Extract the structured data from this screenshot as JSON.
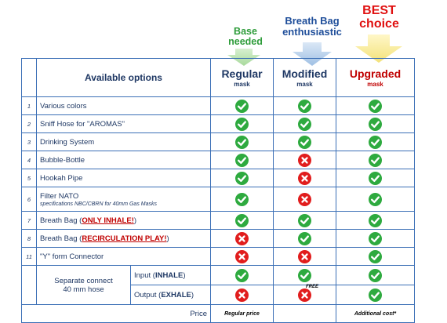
{
  "headers": {
    "base": [
      "Base",
      "needed"
    ],
    "enthusiast": [
      "Breath Bag",
      "enthusiastic"
    ],
    "best": [
      "BEST",
      "choice"
    ]
  },
  "columns": {
    "available": "Available options",
    "regular": {
      "title": "Regular",
      "sub": "mask"
    },
    "modified": {
      "title": "Modified",
      "sub": "mask"
    },
    "upgraded": {
      "title": "Upgraded",
      "sub": "mask"
    }
  },
  "rows": [
    {
      "num": "1",
      "label": "Various colors",
      "regular": "yes",
      "modified": "yes",
      "upgraded": "yes"
    },
    {
      "num": "2",
      "label": "Sniff Hose for \"AROMAS\"",
      "regular": "yes",
      "modified": "yes",
      "upgraded": "yes"
    },
    {
      "num": "3",
      "label": "Drinking System",
      "regular": "yes",
      "modified": "yes",
      "upgraded": "yes"
    },
    {
      "num": "4",
      "label": "Bubble-Bottle",
      "regular": "yes",
      "modified": "no",
      "upgraded": "yes"
    },
    {
      "num": "5",
      "label": "Hookah Pipe",
      "regular": "yes",
      "modified": "no",
      "upgraded": "yes"
    },
    {
      "num": "6",
      "label": "Filter NATO",
      "sub": "specifications NBC/CBRN for 40mm Gas Masks",
      "regular": "yes",
      "modified": "no",
      "upgraded": "yes"
    },
    {
      "num": "7",
      "label": "Breath Bag (",
      "highlight": "ONLY INHALE!",
      "after": ")",
      "regular": "yes",
      "modified": "yes",
      "upgraded": "yes"
    },
    {
      "num": "8",
      "label": "Breath Bag (",
      "highlight": "RECIRCULATION PLAY!",
      "after": ")",
      "regular": "no",
      "modified": "yes",
      "upgraded": "yes"
    },
    {
      "num": "11",
      "label": "\"Y\" form Connector",
      "regular": "no",
      "modified": "no",
      "upgraded": "yes"
    }
  ],
  "separate": {
    "label_line1": "Separate connect",
    "label_line2": "40 mm hose",
    "inhale": {
      "prefix": "Input (",
      "bold": "INHALE",
      "suffix": ")",
      "regular": "yes",
      "modified": "yes",
      "upgraded": "yes"
    },
    "exhale": {
      "prefix": "Output (",
      "bold": "EXHALE",
      "suffix": ")",
      "regular": "no",
      "modified": "no",
      "upgraded": "yes"
    }
  },
  "free_note": "FREE",
  "price": {
    "label": "Price",
    "regular": "Regular price",
    "modified": "",
    "upgraded": "Additional cost*"
  },
  "colors": {
    "green_header": "#2e9c3a",
    "blue_header": "#1f4e9a",
    "red_header": "#e01010",
    "border": "#3b6fb6",
    "yes": "#2eaa3f",
    "no": "#e11d1d"
  }
}
